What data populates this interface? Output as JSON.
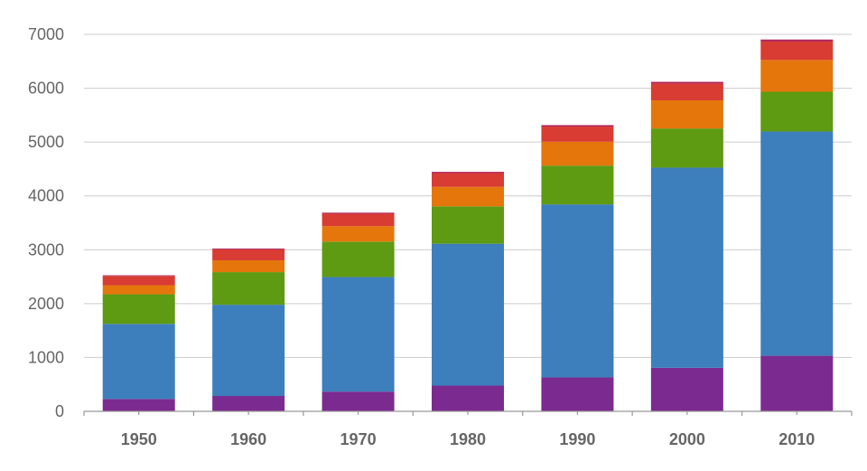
{
  "chart_data": {
    "type": "bar",
    "stacked": true,
    "title": "",
    "xlabel": "",
    "ylabel": "",
    "ylim": [
      0,
      7000
    ],
    "yticks": [
      0,
      1000,
      2000,
      3000,
      4000,
      5000,
      6000,
      7000
    ],
    "grid": true,
    "legend": "none",
    "categories": [
      "1950",
      "1960",
      "1970",
      "1980",
      "1990",
      "2000",
      "2010"
    ],
    "series": [
      {
        "color": "#7b2a8f",
        "values": [
          229,
          285,
          366,
          478,
          629,
          808,
          1031
        ]
      },
      {
        "color": "#3d7ebc",
        "values": [
          1395,
          1694,
          2128,
          2634,
          3213,
          3717,
          4165
        ]
      },
      {
        "color": "#5e9a12",
        "values": [
          549,
          605,
          657,
          694,
          721,
          727,
          738
        ]
      },
      {
        "color": "#e5760c",
        "values": [
          168,
          220,
          287,
          362,
          443,
          522,
          590
        ]
      },
      {
        "color": "#d83c33",
        "values": [
          172,
          204,
          231,
          256,
          281,
          313,
          343
        ]
      },
      {
        "color": "#b0235a",
        "values": [
          13,
          16,
          20,
          23,
          27,
          31,
          37
        ]
      }
    ]
  }
}
